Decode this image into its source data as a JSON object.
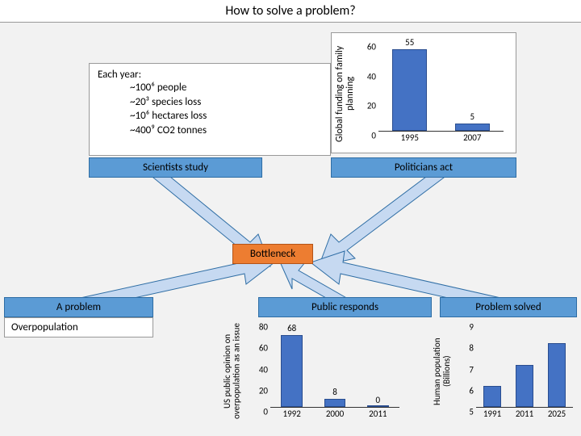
{
  "title": "How to solve a problem?",
  "each_year_box": {
    "heading": "Each year:",
    "lines": [
      "~100⁶ people",
      "~20³ species loss",
      "~10⁶ hectares loss",
      "~400⁹ CO2 tonnes"
    ]
  },
  "labels": {
    "scientists_study": "Scientists study",
    "politicians_act": "Politicians act",
    "bottleneck": "Bottleneck",
    "a_problem": "A problem",
    "public_responds": "Public responds",
    "problem_solved": "Problem solved",
    "overpopulation": "Overpopulation"
  },
  "chart_family": {
    "ylabel": "Global funding on family planning",
    "type": "bar",
    "ymin": 0,
    "ymax": 60,
    "ytick": 20,
    "categories": [
      "1995",
      "2007"
    ],
    "values": [
      55,
      5
    ],
    "bar_color": "#4472c4",
    "bar_border": "#2a4d8f",
    "bg": "#ffffff"
  },
  "chart_opinion": {
    "ylabel": "US public opinion on overpopulation as an issue",
    "type": "bar",
    "ymin": 0,
    "ymax": 80,
    "ytick": 20,
    "categories": [
      "1992",
      "2000",
      "2011"
    ],
    "values": [
      68,
      8,
      0
    ],
    "bar_color": "#4472c4",
    "bar_border": "#2a4d8f",
    "bg": "#ffffff"
  },
  "chart_pop": {
    "ylabel": "Human population (Billions)",
    "type": "bar",
    "ymin": 5,
    "ymax": 9,
    "ytick": 1,
    "categories": [
      "1991",
      "2011",
      "2025"
    ],
    "values": [
      6,
      7,
      8
    ],
    "bar_color": "#4472c4",
    "bar_border": "#2a4d8f",
    "bg": "#ffffff"
  },
  "arrows": {
    "fill": "#c6d9f1",
    "stroke": "#2e6da4"
  }
}
